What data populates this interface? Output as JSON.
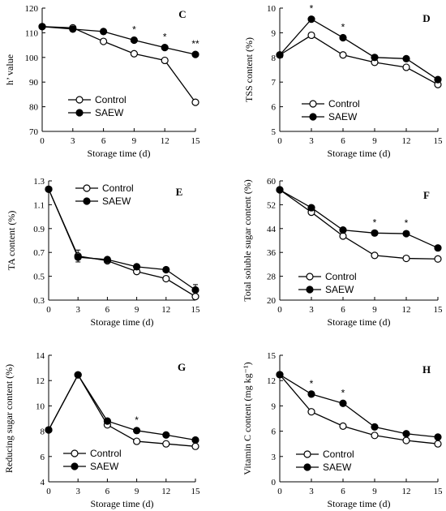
{
  "chart_data": [
    {
      "type": "line",
      "panel": "C",
      "xlabel": "Storage time (d)",
      "ylabel": "h’ value",
      "x": [
        0,
        3,
        6,
        9,
        12,
        15
      ],
      "xlim": [
        0,
        15
      ],
      "ylim": [
        70,
        120
      ],
      "yticks": [
        70,
        80,
        90,
        100,
        110,
        120
      ],
      "ytick_labels": [
        "70",
        "80",
        "90",
        "100",
        "110",
        "120"
      ],
      "xticks": [
        0,
        3,
        6,
        9,
        12,
        15
      ],
      "xtick_labels": [
        "0",
        "3",
        "6",
        "9",
        "12",
        "15"
      ],
      "series": [
        {
          "name": "Control",
          "marker": "open",
          "values": [
            112.5,
            112,
            106.5,
            101.5,
            98.8,
            81.8
          ]
        },
        {
          "name": "SAEW",
          "marker": "filled",
          "values": [
            112.5,
            111.5,
            110.5,
            107,
            104,
            101.2
          ]
        }
      ],
      "annotations": [
        {
          "x": 9,
          "y": 107,
          "text": "*"
        },
        {
          "x": 12,
          "y": 104,
          "text": "*"
        },
        {
          "x": 15,
          "y": 101.2,
          "text": "**"
        }
      ],
      "legend": "bottom-left"
    },
    {
      "type": "line",
      "panel": "D",
      "xlabel": "Storage time (d)",
      "ylabel": "TSS content (%)",
      "x": [
        0,
        3,
        6,
        9,
        12,
        15
      ],
      "xlim": [
        0,
        15
      ],
      "ylim": [
        5,
        10
      ],
      "yticks": [
        5,
        6,
        7,
        8,
        9,
        10
      ],
      "ytick_labels": [
        "5",
        "6",
        "7",
        "8",
        "9",
        "10"
      ],
      "xticks": [
        0,
        3,
        6,
        9,
        12,
        15
      ],
      "xtick_labels": [
        "0",
        "3",
        "6",
        "9",
        "12",
        "15"
      ],
      "series": [
        {
          "name": "Control",
          "marker": "open",
          "values": [
            8.1,
            8.9,
            8.1,
            7.8,
            7.6,
            6.9
          ]
        },
        {
          "name": "SAEW",
          "marker": "filled",
          "values": [
            8.1,
            9.55,
            8.8,
            8.0,
            7.95,
            7.1
          ]
        }
      ],
      "annotations": [
        {
          "x": 3,
          "y": 9.55,
          "text": "*"
        },
        {
          "x": 6,
          "y": 8.8,
          "text": "*"
        }
      ],
      "legend": "bottom-center"
    },
    {
      "type": "line",
      "panel": "E",
      "xlabel": "Storage time (d)",
      "ylabel": "TA content (%)",
      "x": [
        0,
        3,
        6,
        9,
        12,
        15
      ],
      "xlim": [
        0,
        15
      ],
      "ylim": [
        0.3,
        1.3
      ],
      "yticks": [
        0.3,
        0.5,
        0.7,
        0.9,
        1.1,
        1.3
      ],
      "ytick_labels": [
        "0.3",
        "0.5",
        "0.7",
        "0.9",
        "1.1",
        "1.3"
      ],
      "xticks": [
        0,
        3,
        6,
        9,
        12,
        15
      ],
      "xtick_labels": [
        "0",
        "3",
        "6",
        "9",
        "12",
        "15"
      ],
      "series": [
        {
          "name": "Control",
          "marker": "open",
          "values": [
            1.23,
            0.67,
            0.63,
            0.54,
            0.48,
            0.33
          ]
        },
        {
          "name": "SAEW",
          "marker": "filled",
          "values": [
            1.23,
            0.66,
            0.64,
            0.58,
            0.555,
            0.385
          ]
        }
      ],
      "error_bars": [
        {
          "x": 3,
          "low": 0.62,
          "high": 0.72
        },
        {
          "x": 15,
          "low": 0.33,
          "high": 0.43
        }
      ],
      "annotations": [],
      "legend": "top-center"
    },
    {
      "type": "line",
      "panel": "F",
      "xlabel": "Storage time (d)",
      "ylabel": "Total soluble sugar content (%)",
      "x": [
        0,
        3,
        6,
        9,
        12,
        15
      ],
      "xlim": [
        0,
        15
      ],
      "ylim": [
        20,
        60
      ],
      "yticks": [
        20,
        28,
        36,
        44,
        52,
        60
      ],
      "ytick_labels": [
        "20",
        "28",
        "36",
        "44",
        "52",
        "60"
      ],
      "xticks": [
        0,
        3,
        6,
        9,
        12,
        15
      ],
      "xtick_labels": [
        "0",
        "3",
        "6",
        "9",
        "12",
        "15"
      ],
      "series": [
        {
          "name": "Control",
          "marker": "open",
          "values": [
            57,
            49.5,
            41.5,
            35,
            34,
            33.8
          ]
        },
        {
          "name": "SAEW",
          "marker": "filled",
          "values": [
            57,
            51,
            43.5,
            42.5,
            42.3,
            37.5
          ]
        }
      ],
      "annotations": [
        {
          "x": 9,
          "y": 42.5,
          "text": "*"
        },
        {
          "x": 12,
          "y": 42.3,
          "text": "*"
        }
      ],
      "legend": "bottom-left"
    },
    {
      "type": "line",
      "panel": "G",
      "xlabel": "Storage time (d)",
      "ylabel": "Reducing sugar content (%)",
      "x": [
        0,
        3,
        6,
        9,
        12,
        15
      ],
      "xlim": [
        0,
        15
      ],
      "ylim": [
        4,
        14
      ],
      "yticks": [
        4,
        6,
        8,
        10,
        12,
        14
      ],
      "ytick_labels": [
        "4",
        "6",
        "8",
        "10",
        "12",
        "14"
      ],
      "xticks": [
        0,
        3,
        6,
        9,
        12,
        15
      ],
      "xtick_labels": [
        "0",
        "3",
        "6",
        "9",
        "12",
        "15"
      ],
      "series": [
        {
          "name": "Control",
          "marker": "open",
          "values": [
            8.1,
            12.45,
            8.5,
            7.2,
            7.0,
            6.8
          ]
        },
        {
          "name": "SAEW",
          "marker": "filled",
          "values": [
            8.1,
            12.45,
            8.8,
            8.05,
            7.7,
            7.3
          ]
        }
      ],
      "annotations": [
        {
          "x": 9,
          "y": 8.05,
          "text": "*"
        }
      ],
      "legend": "bottom-left"
    },
    {
      "type": "line",
      "panel": "H",
      "xlabel": "Storage time (d)",
      "ylabel": "Vitamin C content (mg kg⁻¹)",
      "x": [
        0,
        3,
        6,
        9,
        12,
        15
      ],
      "xlim": [
        0,
        15
      ],
      "ylim": [
        0,
        15
      ],
      "yticks": [
        0,
        3,
        6,
        9,
        12,
        15
      ],
      "ytick_labels": [
        "0",
        "3",
        "6",
        "9",
        "12",
        "15"
      ],
      "xticks": [
        0,
        3,
        6,
        9,
        12,
        15
      ],
      "xtick_labels": [
        "0",
        "3",
        "6",
        "9",
        "12",
        "15"
      ],
      "series": [
        {
          "name": "Control",
          "marker": "open",
          "values": [
            12.7,
            8.3,
            6.6,
            5.5,
            4.9,
            4.5
          ]
        },
        {
          "name": "SAEW",
          "marker": "filled",
          "values": [
            12.7,
            10.4,
            9.3,
            6.5,
            5.7,
            5.3
          ]
        }
      ],
      "annotations": [
        {
          "x": 3,
          "y": 10.4,
          "text": "*"
        },
        {
          "x": 6,
          "y": 9.3,
          "text": "*"
        }
      ],
      "legend": "bottom-left"
    }
  ]
}
